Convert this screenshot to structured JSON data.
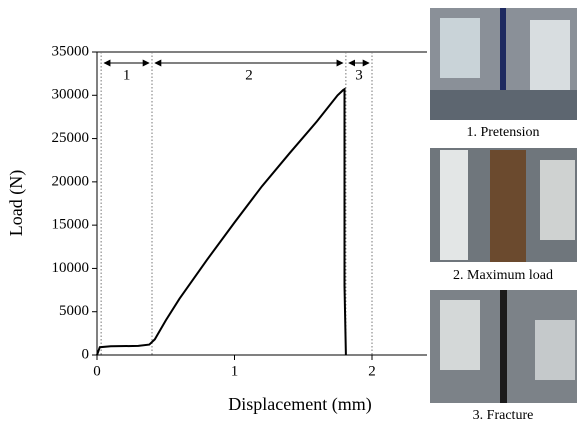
{
  "chart_data": {
    "type": "line",
    "xlabel": "Displacement (mm)",
    "ylabel": "Load (N)",
    "x": [
      0,
      0.02,
      0.1,
      0.3,
      0.38,
      0.42,
      0.5,
      0.6,
      0.8,
      1.0,
      1.2,
      1.4,
      1.6,
      1.75,
      1.79,
      1.8,
      1.8,
      1.81
    ],
    "values": [
      0,
      900,
      1000,
      1050,
      1200,
      1800,
      4000,
      6500,
      11000,
      15300,
      19500,
      23300,
      27000,
      30000,
      30600,
      30700,
      8000,
      0
    ],
    "color": "#000000",
    "xlim": [
      0,
      2.4
    ],
    "ylim": [
      0,
      35000
    ],
    "xticks": [
      0,
      1,
      2
    ],
    "yticks": [
      0,
      5000,
      10000,
      15000,
      20000,
      25000,
      30000,
      35000
    ],
    "phase_boundaries": [
      0.03,
      0.4,
      1.81,
      2.0
    ],
    "phases": [
      "1",
      "2",
      "3"
    ]
  },
  "photos": [
    {
      "caption": "1. Pretension"
    },
    {
      "caption": "2. Maximum load"
    },
    {
      "caption": "3. Fracture"
    }
  ]
}
